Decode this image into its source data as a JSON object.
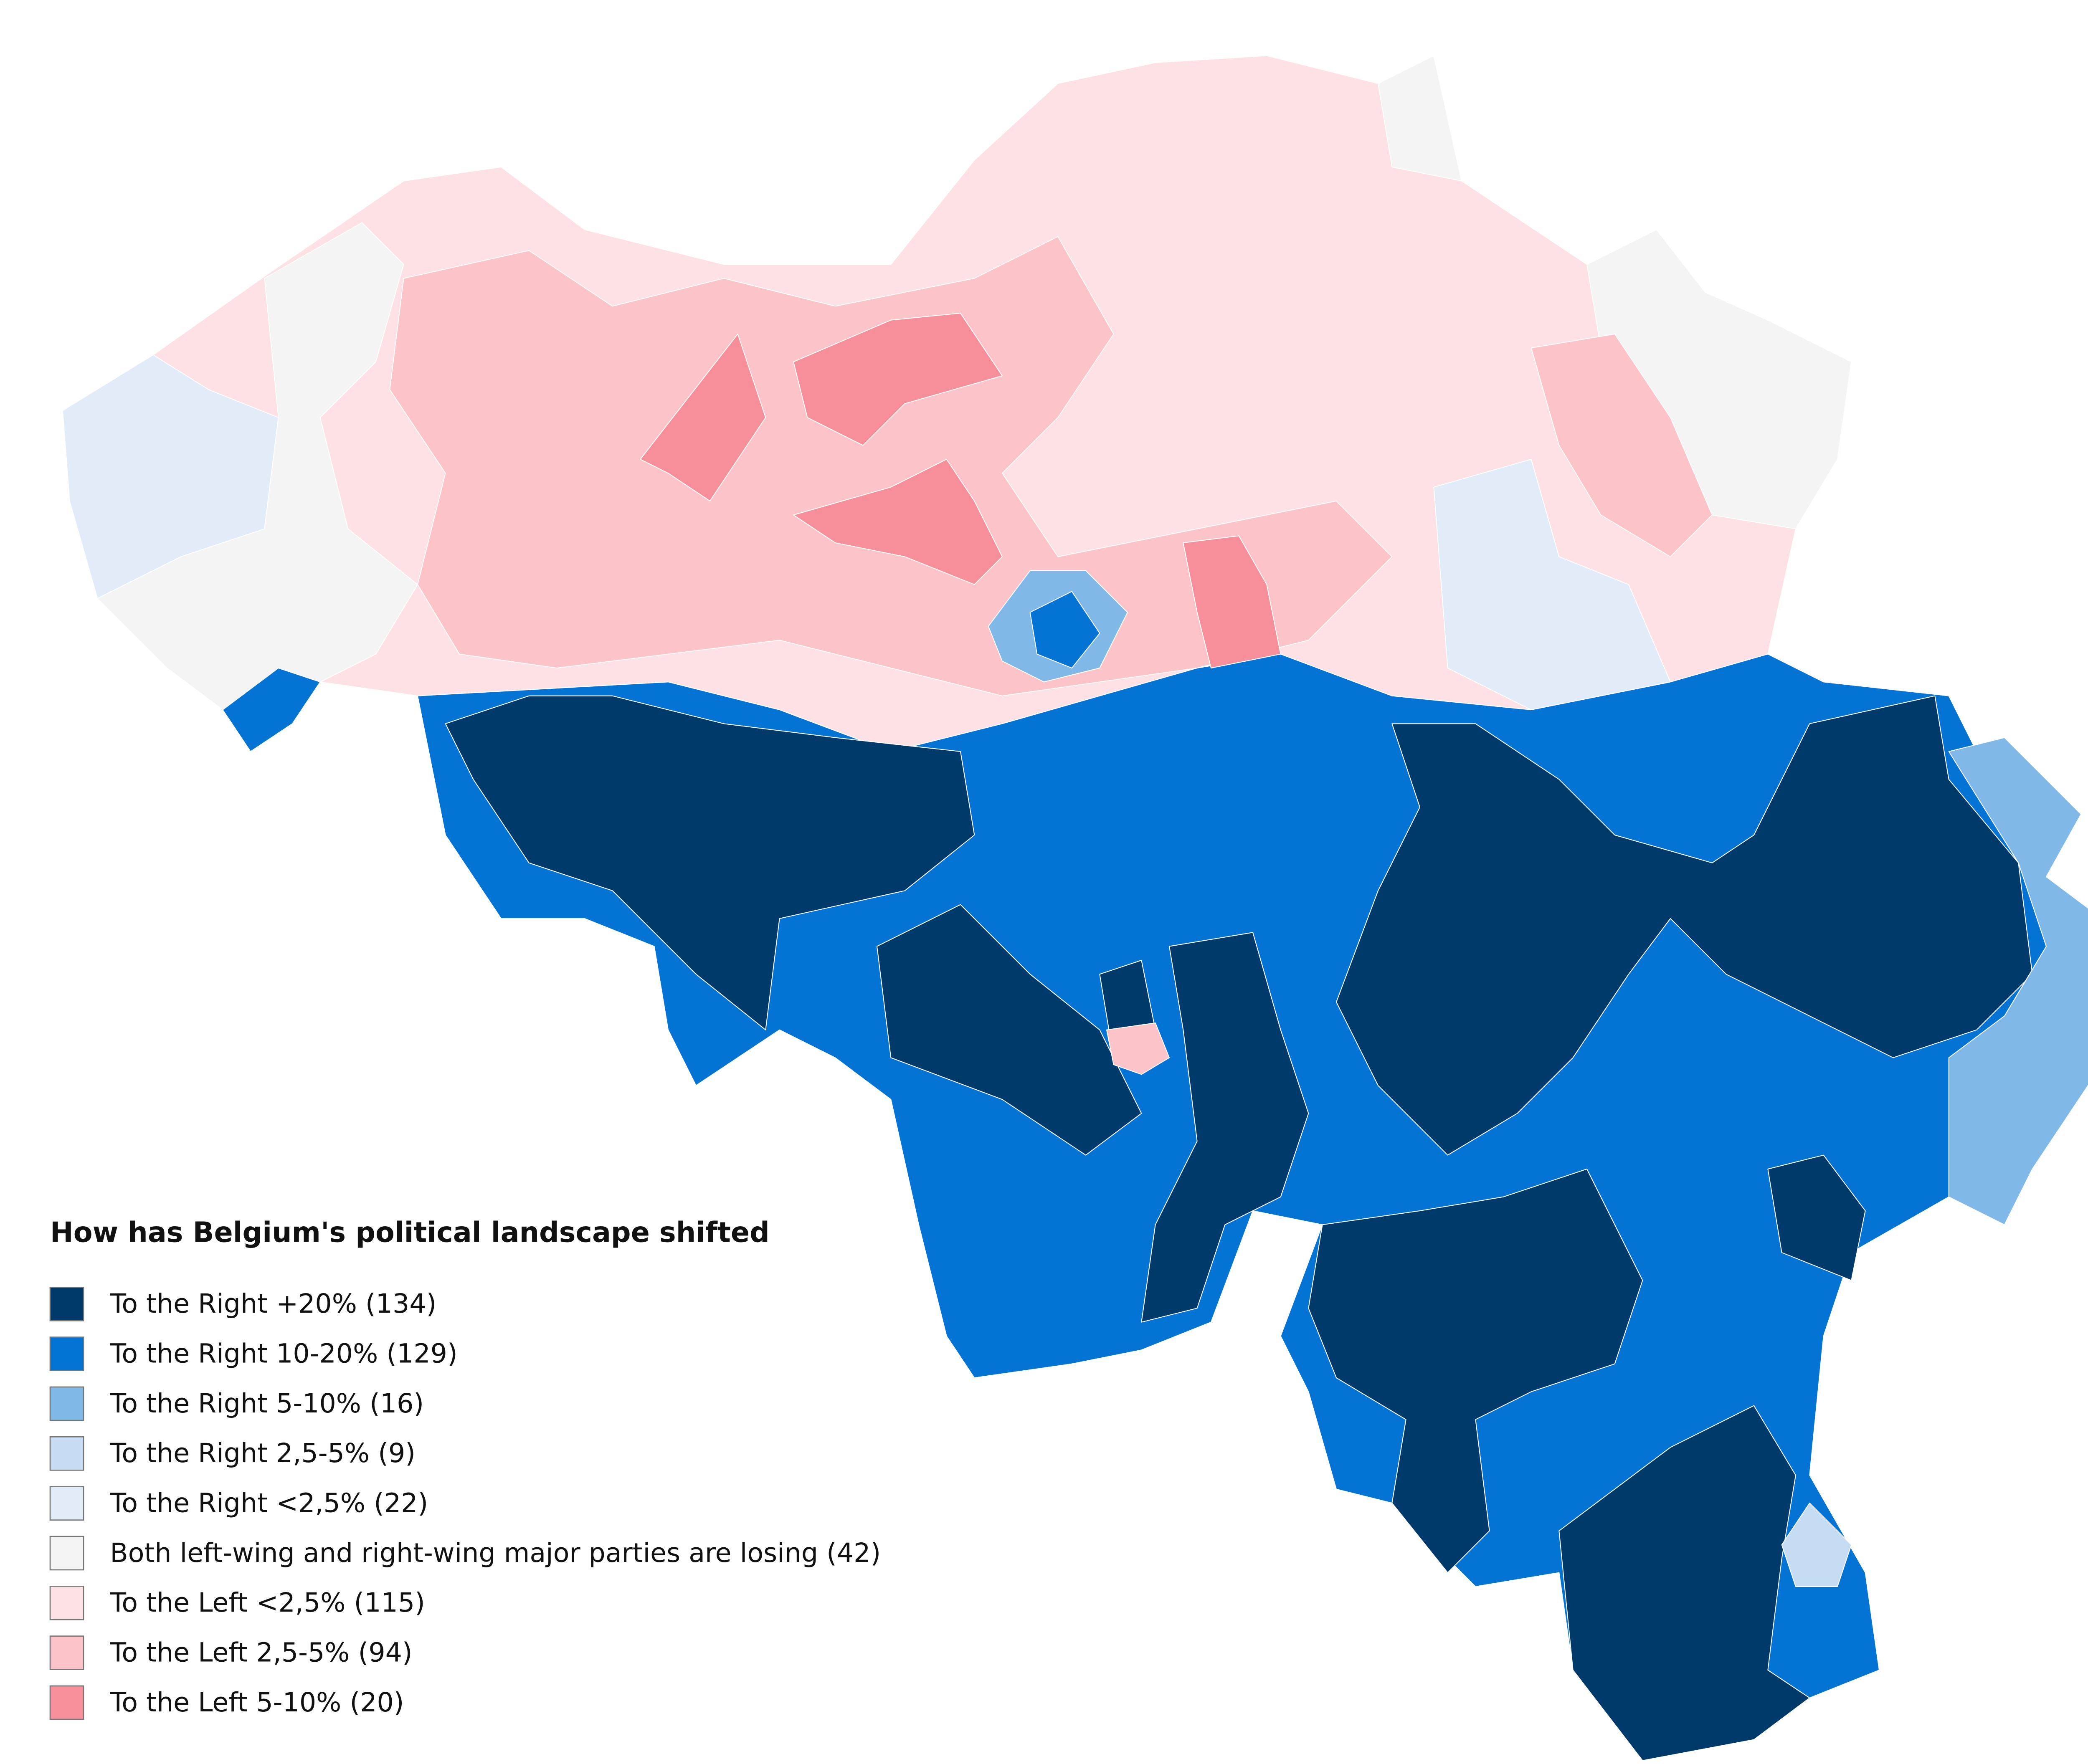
{
  "title": "How has Belgium's political landscape shifted",
  "legend": [
    {
      "label": "To the Right +20% (134)",
      "color": "#003a6b"
    },
    {
      "label": "To the Right 10-20% (129)",
      "color": "#0474d4"
    },
    {
      "label": "To the Right 5-10% (16)",
      "color": "#80b9e8"
    },
    {
      "label": "To the Right 2,5-5% (9)",
      "color": "#c6dcf2"
    },
    {
      "label": "To the Right <2,5% (22)",
      "color": "#e2ecf8"
    },
    {
      "label": "Both left-wing and right-wing major parties are losing (42)",
      "color": "#f4f4f4"
    },
    {
      "label": "To the Left <2,5% (115)",
      "color": "#fde1e4"
    },
    {
      "label": "To the Left 2,5-5% (94)",
      "color": "#fcc3c8"
    },
    {
      "label": "To the Left 5-10% (20)",
      "color": "#f78f9a"
    }
  ]
}
